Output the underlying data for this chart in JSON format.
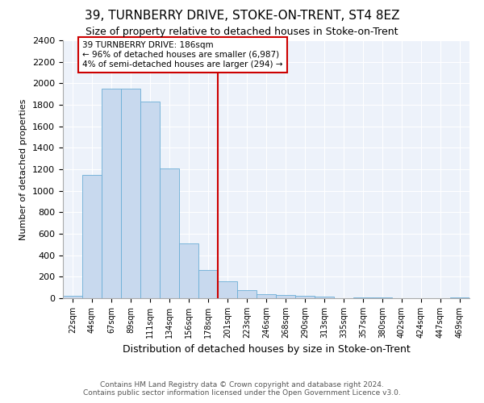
{
  "title": "39, TURNBERRY DRIVE, STOKE-ON-TRENT, ST4 8EZ",
  "subtitle": "Size of property relative to detached houses in Stoke-on-Trent",
  "xlabel": "Distribution of detached houses by size in Stoke-on-Trent",
  "ylabel": "Number of detached properties",
  "bar_labels": [
    "22sqm",
    "44sqm",
    "67sqm",
    "89sqm",
    "111sqm",
    "134sqm",
    "156sqm",
    "178sqm",
    "201sqm",
    "223sqm",
    "246sqm",
    "268sqm",
    "290sqm",
    "313sqm",
    "335sqm",
    "357sqm",
    "380sqm",
    "402sqm",
    "424sqm",
    "447sqm",
    "469sqm"
  ],
  "bar_values": [
    22,
    1150,
    1950,
    1950,
    1830,
    1210,
    510,
    260,
    155,
    75,
    40,
    30,
    25,
    15,
    0,
    5,
    5,
    0,
    0,
    0,
    5
  ],
  "bar_color": "#c8d9ee",
  "bar_edge_color": "#6baed6",
  "property_line_x": 7.5,
  "annotation_title": "39 TURNBERRY DRIVE: 186sqm",
  "annotation_line1": "← 96% of detached houses are smaller (6,987)",
  "annotation_line2": "4% of semi-detached houses are larger (294) →",
  "footer1": "Contains HM Land Registry data © Crown copyright and database right 2024.",
  "footer2": "Contains public sector information licensed under the Open Government Licence v3.0.",
  "ylim": [
    0,
    2400
  ],
  "yticks": [
    0,
    200,
    400,
    600,
    800,
    1000,
    1200,
    1400,
    1600,
    1800,
    2000,
    2200,
    2400
  ],
  "background_color": "#edf2fa",
  "grid_color": "#ffffff",
  "fig_background": "#ffffff"
}
